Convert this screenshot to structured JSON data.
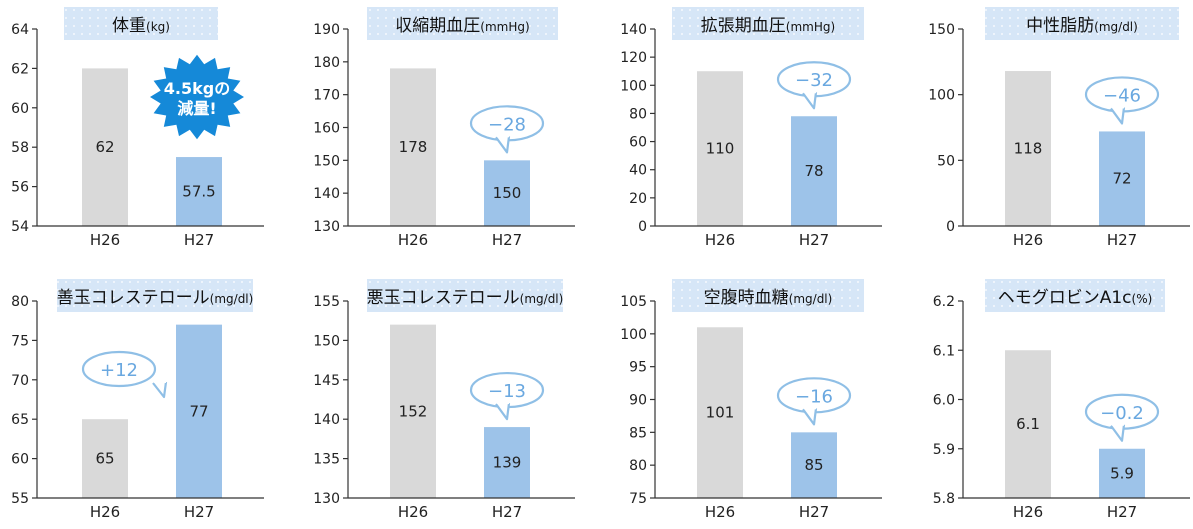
{
  "colors": {
    "h26_bar": "#d9d9d9",
    "h27_bar": "#9dc3e9",
    "axis": "#333333",
    "title_box": "#d6e6f7",
    "callout_text": "#6aa8e0",
    "callout_stroke": "#8fbfe6",
    "burst": "#1589d8"
  },
  "burst": {
    "line1": "4.5kgの",
    "line2": "減量!"
  },
  "chart_data": [
    {
      "type": "bar",
      "title": "体重",
      "unit": "(kg)",
      "categories": [
        "H26",
        "H27"
      ],
      "values": [
        62,
        57.5
      ],
      "labels": [
        "62",
        "57.5"
      ],
      "ylim": [
        54,
        64
      ],
      "yticks": [
        54,
        56,
        58,
        60,
        62,
        64
      ],
      "ytick_labels": [
        "54",
        "56",
        "58",
        "60",
        "62",
        "64"
      ],
      "callout": "",
      "highlight": "burst"
    },
    {
      "type": "bar",
      "title": "収縮期血圧",
      "unit": "(mmHg)",
      "categories": [
        "H26",
        "H27"
      ],
      "values": [
        178,
        150
      ],
      "labels": [
        "178",
        "150"
      ],
      "ylim": [
        130,
        190
      ],
      "yticks": [
        130,
        140,
        150,
        160,
        170,
        180,
        190
      ],
      "ytick_labels": [
        "130",
        "140",
        "150",
        "160",
        "170",
        "180",
        "190"
      ],
      "callout": "−28"
    },
    {
      "type": "bar",
      "title": "拡張期血圧",
      "unit": "(mmHg)",
      "categories": [
        "H26",
        "H27"
      ],
      "values": [
        110,
        78
      ],
      "labels": [
        "110",
        "78"
      ],
      "ylim": [
        0,
        140
      ],
      "yticks": [
        0,
        20,
        40,
        60,
        80,
        100,
        120,
        140
      ],
      "ytick_labels": [
        "0",
        "20",
        "40",
        "60",
        "80",
        "100",
        "120",
        "140"
      ],
      "callout": "−32"
    },
    {
      "type": "bar",
      "title": "中性脂肪",
      "unit": "(mg/dl)",
      "categories": [
        "H26",
        "H27"
      ],
      "values": [
        118,
        72
      ],
      "labels": [
        "118",
        "72"
      ],
      "ylim": [
        0,
        150
      ],
      "yticks": [
        0,
        50,
        100,
        150
      ],
      "ytick_labels": [
        "0",
        "50",
        "100",
        "150"
      ],
      "callout": "−46"
    },
    {
      "type": "bar",
      "title": "善玉コレステロール",
      "unit": "(mg/dl)",
      "categories": [
        "H26",
        "H27"
      ],
      "values": [
        65,
        77
      ],
      "labels": [
        "65",
        "77"
      ],
      "ylim": [
        55,
        80
      ],
      "yticks": [
        55,
        60,
        65,
        70,
        75,
        80
      ],
      "ytick_labels": [
        "55",
        "60",
        "65",
        "70",
        "75",
        "80"
      ],
      "callout": "+12"
    },
    {
      "type": "bar",
      "title": "悪玉コレステロール",
      "unit": "(mg/dl)",
      "categories": [
        "H26",
        "H27"
      ],
      "values": [
        152,
        139
      ],
      "labels": [
        "152",
        "139"
      ],
      "ylim": [
        130,
        155
      ],
      "yticks": [
        130,
        135,
        140,
        145,
        150,
        155
      ],
      "ytick_labels": [
        "130",
        "135",
        "140",
        "145",
        "150",
        "155"
      ],
      "callout": "−13"
    },
    {
      "type": "bar",
      "title": "空腹時血糖",
      "unit": "(mg/dl)",
      "categories": [
        "H26",
        "H27"
      ],
      "values": [
        101,
        85
      ],
      "labels": [
        "101",
        "85"
      ],
      "ylim": [
        75,
        105
      ],
      "yticks": [
        75,
        80,
        85,
        90,
        95,
        100,
        105
      ],
      "ytick_labels": [
        "75",
        "80",
        "85",
        "90",
        "95",
        "100",
        "105"
      ],
      "callout": "−16"
    },
    {
      "type": "bar",
      "title": "ヘモグロビンA1c",
      "unit": "(%)",
      "categories": [
        "H26",
        "H27"
      ],
      "values": [
        6.1,
        5.9
      ],
      "labels": [
        "6.1",
        "5.9"
      ],
      "ylim": [
        5.8,
        6.2
      ],
      "yticks": [
        5.8,
        5.9,
        6.0,
        6.1,
        6.2
      ],
      "ytick_labels": [
        "5.8",
        "5.9",
        "6.0",
        "6.1",
        "6.2"
      ],
      "callout": "−0.2"
    }
  ]
}
